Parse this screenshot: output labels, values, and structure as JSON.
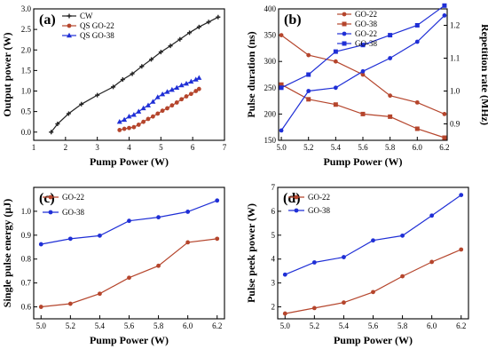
{
  "colors": {
    "black": "#222222",
    "red": "#b5452c",
    "blue": "#1f2fd6",
    "axis_red": "#c0392b",
    "axis_blue": "#1f2fd6"
  },
  "chart_data": [
    {
      "panel_label": "(a)",
      "type": "line",
      "xlabel": "Pump Power (W)",
      "ylabel": "Output power (W)",
      "xlim": [
        1,
        7
      ],
      "ylim": [
        -0.2,
        3.0
      ],
      "xticks": [
        "1",
        "2",
        "3",
        "4",
        "5",
        "6",
        "7"
      ],
      "yticks": [
        "0.0",
        "0.5",
        "1.0",
        "1.5",
        "2.0",
        "2.5",
        "3.0"
      ],
      "legend": "top-left",
      "series": [
        {
          "name": "CW",
          "color": "black",
          "marker": "cross",
          "x": [
            1.55,
            1.75,
            2.1,
            2.5,
            3.0,
            3.5,
            3.8,
            4.1,
            4.4,
            4.7,
            5.0,
            5.3,
            5.6,
            5.9,
            6.2,
            6.5,
            6.8
          ],
          "y": [
            0.0,
            0.2,
            0.45,
            0.68,
            0.9,
            1.1,
            1.28,
            1.42,
            1.6,
            1.77,
            1.95,
            2.1,
            2.26,
            2.42,
            2.56,
            2.68,
            2.8
          ]
        },
        {
          "name": "QS GO-22",
          "color": "red",
          "marker": "dot",
          "x": [
            3.7,
            3.85,
            4.0,
            4.15,
            4.3,
            4.45,
            4.6,
            4.75,
            4.9,
            5.05,
            5.2,
            5.35,
            5.5,
            5.65,
            5.8,
            5.95,
            6.1,
            6.2
          ],
          "y": [
            0.05,
            0.08,
            0.1,
            0.12,
            0.18,
            0.25,
            0.32,
            0.38,
            0.45,
            0.52,
            0.58,
            0.65,
            0.72,
            0.8,
            0.87,
            0.93,
            1.0,
            1.05
          ]
        },
        {
          "name": "QS GO-38",
          "color": "blue",
          "marker": "triangle",
          "x": [
            3.7,
            3.85,
            4.0,
            4.15,
            4.3,
            4.45,
            4.6,
            4.75,
            4.9,
            5.05,
            5.2,
            5.35,
            5.5,
            5.65,
            5.8,
            5.95,
            6.1,
            6.2
          ],
          "y": [
            0.25,
            0.3,
            0.38,
            0.42,
            0.5,
            0.58,
            0.65,
            0.74,
            0.85,
            0.92,
            0.98,
            1.03,
            1.08,
            1.14,
            1.18,
            1.23,
            1.28,
            1.32
          ]
        }
      ]
    },
    {
      "panel_label": "(b)",
      "type": "line",
      "xlabel": "Pump Power (W)",
      "ylabel": "Pulse duration (ns)",
      "y2label": "Repetition rate (MHz)",
      "x": [
        5.0,
        5.2,
        5.4,
        5.6,
        5.8,
        6.0,
        6.2
      ],
      "xlim": [
        4.98,
        6.22
      ],
      "ylim": [
        150,
        400
      ],
      "y2lim": [
        0.85,
        1.25
      ],
      "xticks": [
        "5.0",
        "5.2",
        "5.4",
        "5.6",
        "5.8",
        "6.0",
        "6.2"
      ],
      "yticks": [
        "150",
        "200",
        "250",
        "300",
        "350",
        "400"
      ],
      "y2ticks": [
        "0.9",
        "1.0",
        "1.1",
        "1.2"
      ],
      "legend": "top-right",
      "series": [
        {
          "name": "GO-22",
          "color": "red",
          "marker": "dot",
          "axis": "left",
          "values": [
            350,
            312,
            300,
            275,
            235,
            222,
            200
          ]
        },
        {
          "name": "GO-38",
          "color": "red",
          "marker": "square",
          "axis": "left",
          "values": [
            256,
            228,
            218,
            200,
            195,
            172,
            155
          ]
        },
        {
          "name": "GO-22",
          "color": "blue",
          "marker": "dot",
          "axis": "right",
          "values": [
            0.88,
            1.0,
            1.01,
            1.06,
            1.1,
            1.15,
            1.23
          ]
        },
        {
          "name": "GO-38",
          "color": "blue",
          "marker": "square",
          "axis": "right",
          "values": [
            1.01,
            1.05,
            1.12,
            1.14,
            1.17,
            1.2,
            1.26
          ]
        }
      ]
    },
    {
      "panel_label": "(c)",
      "type": "line",
      "xlabel": "Pump Power (W)",
      "ylabel": "Single pulse energy (μJ)",
      "x": [
        5.0,
        5.2,
        5.4,
        5.6,
        5.8,
        6.0,
        6.2
      ],
      "xlim": [
        4.95,
        6.25
      ],
      "ylim": [
        0.55,
        1.1
      ],
      "xticks": [
        "5.0",
        "5.2",
        "5.4",
        "5.6",
        "5.8",
        "6.0",
        "6.2"
      ],
      "yticks": [
        "0.6",
        "0.7",
        "0.8",
        "0.9",
        "1.0"
      ],
      "legend": "top-left",
      "series": [
        {
          "name": "GO-22",
          "color": "red",
          "marker": "dot",
          "values": [
            0.6,
            0.613,
            0.655,
            0.722,
            0.772,
            0.87,
            0.885
          ]
        },
        {
          "name": "GO-38",
          "color": "blue",
          "marker": "dot",
          "values": [
            0.862,
            0.885,
            0.898,
            0.96,
            0.975,
            0.998,
            1.045
          ]
        }
      ]
    },
    {
      "panel_label": "(d)",
      "type": "line",
      "xlabel": "Pump Power (W)",
      "ylabel": "Pulse peek power (W)",
      "x": [
        5.0,
        5.2,
        5.4,
        5.6,
        5.8,
        6.0,
        6.2
      ],
      "xlim": [
        4.95,
        6.25
      ],
      "ylim": [
        1.5,
        7.0
      ],
      "xticks": [
        "5.0",
        "5.2",
        "5.4",
        "5.6",
        "5.8",
        "6.0",
        "6.2"
      ],
      "yticks": [
        "2",
        "3",
        "4",
        "5",
        "6",
        "7"
      ],
      "legend": "top-left",
      "series": [
        {
          "name": "GO-22",
          "color": "red",
          "marker": "dot",
          "values": [
            1.72,
            1.95,
            2.18,
            2.62,
            3.28,
            3.88,
            4.4
          ]
        },
        {
          "name": "GO-38",
          "color": "blue",
          "marker": "dot",
          "values": [
            3.35,
            3.86,
            4.08,
            4.78,
            4.98,
            5.82,
            6.68
          ]
        }
      ]
    }
  ]
}
